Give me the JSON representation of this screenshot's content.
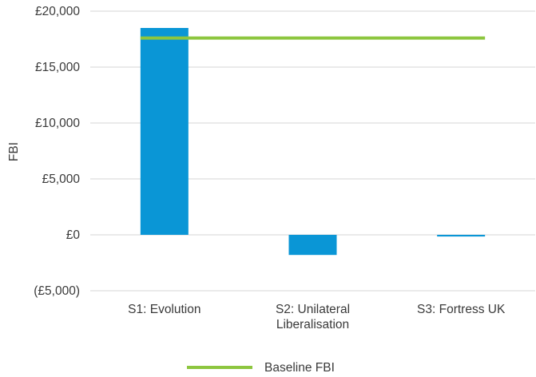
{
  "chart_data": {
    "type": "bar",
    "title": "",
    "xlabel": "",
    "ylabel": "FBI",
    "ylim": [
      -5000,
      20000
    ],
    "y_ticks": [
      {
        "value": 20000,
        "label": "£20,000",
        "negative": false
      },
      {
        "value": 15000,
        "label": "£15,000",
        "negative": false
      },
      {
        "value": 10000,
        "label": "£10,000",
        "negative": false
      },
      {
        "value": 5000,
        "label": "£5,000",
        "negative": false
      },
      {
        "value": 0,
        "label": "£0",
        "negative": false
      },
      {
        "value": -5000,
        "label": "(£5,000)",
        "negative": true
      }
    ],
    "categories": [
      [
        "S1: Evolution"
      ],
      [
        "S2: Unilateral",
        "Liberalisation"
      ],
      [
        "S3: Fortress UK"
      ]
    ],
    "series": [
      {
        "values": [
          18500,
          -1800,
          -150
        ],
        "color": "#0a96d6"
      }
    ],
    "reference_line": {
      "name": "Baseline FBI",
      "value": 17600,
      "color": "#8dc63f"
    },
    "negative_label_color": "#e8572a",
    "grid": true,
    "legend_position": "bottom"
  }
}
